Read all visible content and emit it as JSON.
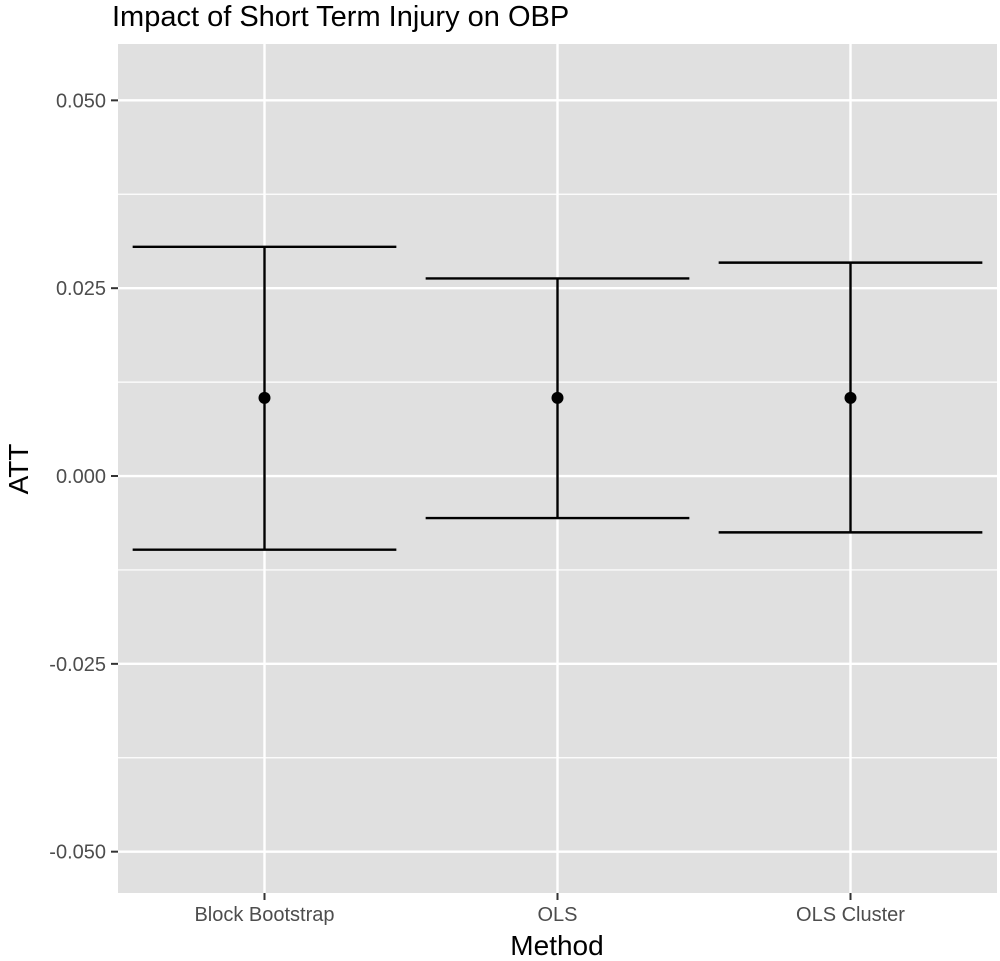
{
  "chart_data": {
    "type": "errorbar",
    "title": "Impact of Short Term Injury on OBP",
    "xlabel": "Method",
    "ylabel": "ATT",
    "categories": [
      "Block Bootstrap",
      "OLS",
      "OLS Cluster"
    ],
    "estimate": [
      0.0104,
      0.0104,
      0.0104
    ],
    "lower": [
      -0.0098,
      -0.0056,
      -0.0075
    ],
    "upper": [
      0.0305,
      0.0263,
      0.0284
    ],
    "ylim": [
      -0.0555,
      0.0575
    ],
    "yticks": [
      -0.05,
      -0.025,
      0.0,
      0.025,
      0.05
    ],
    "yticklabels": [
      "-0.050",
      "-0.025",
      "0.000",
      "0.025",
      "0.050"
    ],
    "grid": true,
    "colors": {
      "panel": "#e0e0e0",
      "grid": "#ffffff",
      "mark": "#000000"
    }
  }
}
